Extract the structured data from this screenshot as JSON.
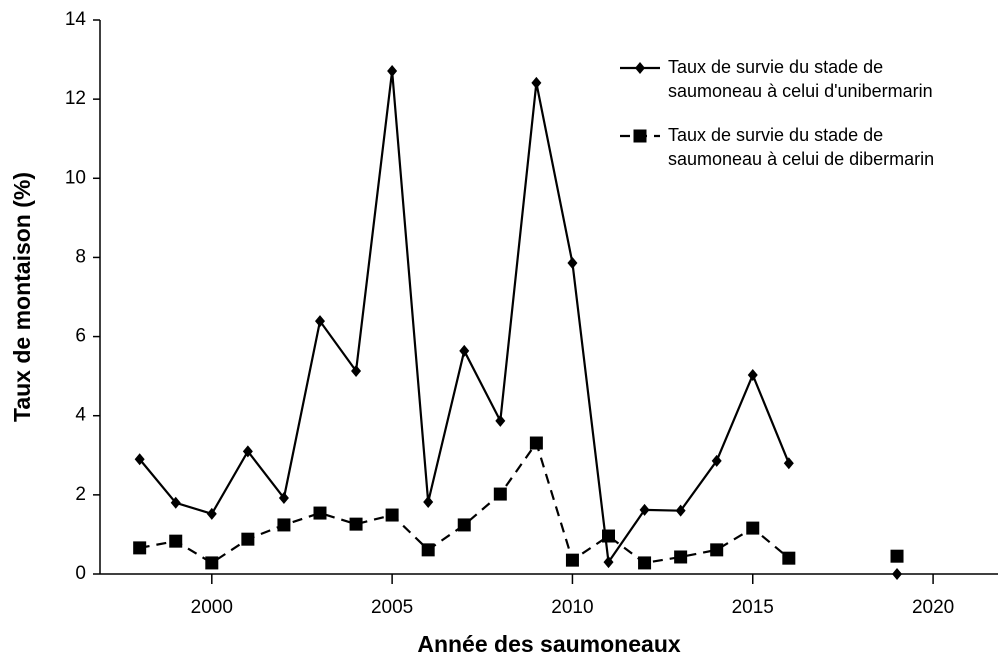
{
  "chart_data": {
    "type": "line",
    "x_label": "Année des saumoneaux",
    "y_label": "Taux de montaison (%)",
    "x": [
      1998,
      1999,
      2000,
      2001,
      2002,
      2003,
      2004,
      2005,
      2006,
      2007,
      2008,
      2009,
      2010,
      2011,
      2012,
      2013,
      2014,
      2015,
      2016,
      2017,
      2018,
      2019
    ],
    "series": [
      {
        "name": "Taux de survie du stade de\nsaumoneau à celui d'unibermarin",
        "color": "#000000",
        "marker": "diamond",
        "dash": false,
        "values": [
          2.9,
          1.8,
          1.52,
          3.1,
          1.92,
          6.39,
          5.13,
          12.71,
          1.82,
          5.64,
          3.87,
          12.41,
          7.86,
          0.3,
          1.62,
          1.6,
          2.86,
          5.03,
          2.8,
          null,
          null,
          0
        ]
      },
      {
        "name": "Taux de survie du stade de\nsaumoneau à celui de dibermarin",
        "color": "#000000",
        "marker": "square",
        "dash": true,
        "values": [
          0.66,
          0.83,
          0.28,
          0.88,
          1.24,
          1.54,
          1.26,
          1.49,
          0.61,
          1.24,
          2.02,
          3.31,
          0.35,
          0.96,
          0.28,
          0.43,
          0.61,
          1.16,
          0.4,
          null,
          null,
          0.45
        ]
      }
    ],
    "xlim": [
      1996.9,
      2021.8
    ],
    "xticks": [
      2000,
      2005,
      2010,
      2015,
      2020
    ],
    "ylim": [
      0,
      14
    ],
    "yticks": [
      0,
      2,
      4,
      6,
      8,
      10,
      12,
      14
    ],
    "grid": false,
    "legend": "upper right"
  }
}
